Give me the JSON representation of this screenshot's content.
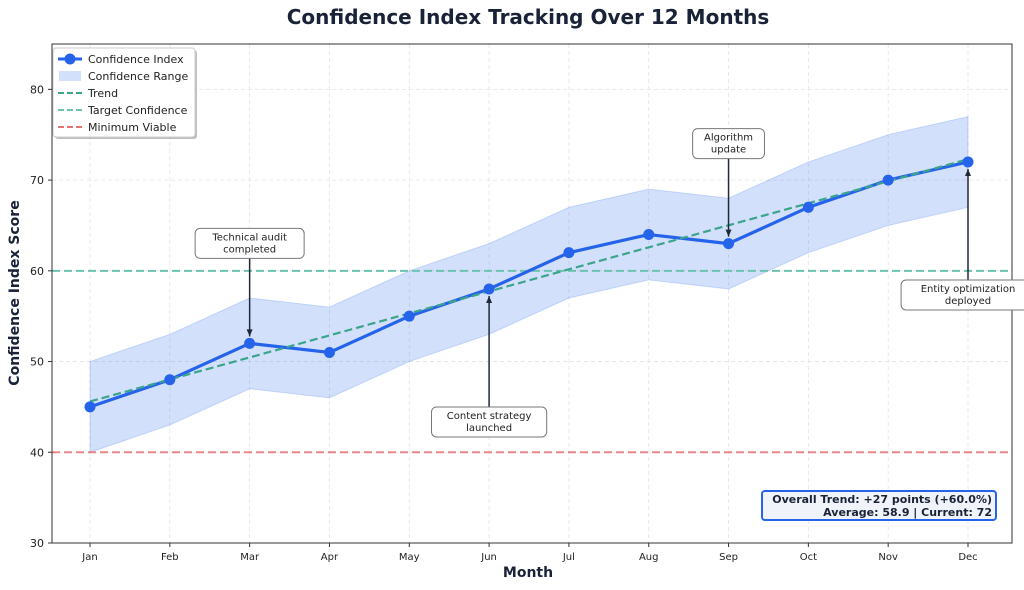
{
  "chart_data": {
    "type": "line",
    "title": "Confidence Index Tracking Over 12 Months",
    "xlabel": "Month",
    "ylabel": "Confidence Index Score",
    "categories": [
      "Jan",
      "Feb",
      "Mar",
      "Apr",
      "May",
      "Jun",
      "Jul",
      "Aug",
      "Sep",
      "Oct",
      "Nov",
      "Dec"
    ],
    "ylim": [
      30,
      85
    ],
    "yticks": [
      30,
      40,
      50,
      60,
      70,
      80
    ],
    "grid": true,
    "legend_position": "top-left",
    "series": [
      {
        "name": "Confidence Index",
        "kind": "line-marker",
        "color": "#2563eb",
        "values": [
          45,
          48,
          52,
          51,
          55,
          58,
          62,
          64,
          63,
          67,
          70,
          72
        ]
      },
      {
        "name": "Confidence Range",
        "kind": "band",
        "color": "#2563eb",
        "lower": [
          40,
          43,
          47,
          46,
          50,
          53,
          57,
          59,
          58,
          62,
          65,
          67
        ],
        "upper": [
          50,
          53,
          57,
          56,
          60,
          63,
          67,
          69,
          68,
          72,
          75,
          77
        ]
      },
      {
        "name": "Trend",
        "kind": "dashed-line",
        "color": "#3ba58b",
        "start": 45.6,
        "end": 72.3
      },
      {
        "name": "Target Confidence",
        "kind": "hline",
        "color": "#6cc3b0",
        "value": 60
      },
      {
        "name": "Minimum Viable",
        "kind": "hline",
        "color": "#e57373",
        "value": 40
      }
    ],
    "annotations": [
      {
        "month": "Mar",
        "value": 52,
        "text": [
          "Technical audit",
          "completed"
        ],
        "position": "above"
      },
      {
        "month": "Jun",
        "value": 58,
        "text": [
          "Content strategy",
          "launched"
        ],
        "position": "below"
      },
      {
        "month": "Sep",
        "value": 63,
        "text": [
          "Algorithm",
          "update"
        ],
        "position": "above"
      },
      {
        "month": "Dec",
        "value": 72,
        "text": [
          "Entity optimization",
          "deployed"
        ],
        "position": "below"
      }
    ],
    "summary_box": {
      "line1": "Overall Trend: +27 points (+60.0%)",
      "line2": "Average: 58.9 | Current: 72"
    }
  }
}
